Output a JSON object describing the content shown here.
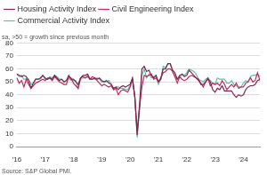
{
  "chart_data": {
    "type": "line",
    "subtitle": "sa, >50 = growth since previous month",
    "source": "Source: S&P Global PMI.",
    "categories": [
      "'16",
      null,
      null,
      null,
      null,
      null,
      null,
      null,
      null,
      null,
      null,
      null,
      "'17",
      null,
      null,
      null,
      null,
      null,
      null,
      null,
      null,
      null,
      null,
      null,
      "'18",
      null,
      null,
      null,
      null,
      null,
      null,
      null,
      null,
      null,
      null,
      null,
      "'19",
      null,
      null,
      null,
      null,
      null,
      null,
      null,
      null,
      null,
      null,
      null,
      "'20",
      null,
      null,
      null,
      null,
      null,
      null,
      null,
      null,
      null,
      null,
      null,
      "'21",
      null,
      null,
      null,
      null,
      null,
      null,
      null,
      null,
      null,
      null,
      null,
      "'22",
      null,
      null,
      null,
      null,
      null,
      null,
      null,
      null,
      null,
      null,
      null,
      "'23",
      null,
      null,
      null,
      null,
      null,
      null,
      null,
      null,
      null,
      null,
      null,
      "'24",
      null,
      null,
      null,
      null,
      null,
      null,
      null
    ],
    "series": [
      {
        "name": "Housing Activity Index",
        "color": "#7e2553",
        "values": [
          56,
          55,
          54,
          55,
          54,
          51,
          45,
          49,
          52,
          52,
          53,
          55,
          53,
          52,
          53,
          52,
          55,
          53,
          51,
          52,
          50,
          51,
          55,
          52,
          52,
          50,
          48,
          53,
          55,
          55,
          56,
          52,
          52,
          53,
          52,
          53,
          51,
          50,
          51,
          49,
          48,
          45,
          46,
          44,
          46,
          47,
          46,
          47,
          48,
          53,
          39,
          9,
          32,
          60,
          62,
          58,
          59,
          55,
          53,
          55,
          50,
          52,
          60,
          60,
          64,
          64,
          59,
          57,
          52,
          55,
          56,
          54,
          55,
          59,
          57,
          55,
          53,
          52,
          48,
          48,
          50,
          52,
          50,
          44,
          42,
          45,
          44,
          47,
          43,
          43,
          43,
          43,
          40,
          38,
          40,
          39,
          40,
          44,
          46,
          47,
          47,
          48,
          51,
          52
        ]
      },
      {
        "name": "Civil Engineering Index",
        "color": "#c2285a",
        "values": [
          53,
          49,
          51,
          46,
          52,
          48,
          45,
          47,
          49,
          50,
          51,
          52,
          51,
          53,
          53,
          51,
          54,
          52,
          50,
          49,
          48,
          48,
          54,
          53,
          49,
          47,
          45,
          53,
          54,
          53,
          54,
          52,
          54,
          53,
          51,
          49,
          47,
          48,
          47,
          46,
          47,
          44,
          45,
          40,
          43,
          44,
          43,
          42,
          46,
          52,
          38,
          12,
          30,
          46,
          55,
          54,
          55,
          56,
          52,
          53,
          50,
          53,
          57,
          58,
          60,
          60,
          58,
          54,
          49,
          54,
          52,
          51,
          52,
          54,
          55,
          54,
          53,
          51,
          49,
          46,
          50,
          53,
          47,
          49,
          48,
          49,
          47,
          51,
          48,
          44,
          46,
          48,
          46,
          49,
          45,
          46,
          46,
          49,
          50,
          53,
          50,
          51,
          57,
          51
        ]
      },
      {
        "name": "Commercial Activity Index",
        "color": "#62bfa2",
        "values": [
          56,
          54,
          55,
          52,
          52,
          52,
          48,
          49,
          52,
          52,
          52,
          55,
          52,
          52,
          54,
          53,
          55,
          54,
          52,
          52,
          50,
          51,
          53,
          51,
          51,
          51,
          45,
          52,
          53,
          53,
          55,
          52,
          52,
          52,
          53,
          52,
          50,
          50,
          50,
          51,
          48,
          44,
          46,
          46,
          45,
          45,
          44,
          44,
          47,
          52,
          38,
          7,
          28,
          55,
          60,
          53,
          56,
          53,
          54,
          55,
          48,
          52,
          62,
          61,
          64,
          64,
          58,
          54,
          52,
          53,
          56,
          55,
          57,
          60,
          59,
          58,
          56,
          52,
          51,
          50,
          52,
          53,
          51,
          49,
          48,
          53,
          52,
          52,
          52,
          49,
          49,
          51,
          48,
          47,
          46,
          46,
          49,
          51,
          50,
          54,
          55,
          55,
          56,
          54
        ]
      }
    ],
    "ylim": [
      0,
      80
    ],
    "yticks": [
      0,
      10,
      20,
      30,
      40,
      50,
      60,
      70,
      80
    ],
    "grid": true,
    "legend": "top"
  }
}
